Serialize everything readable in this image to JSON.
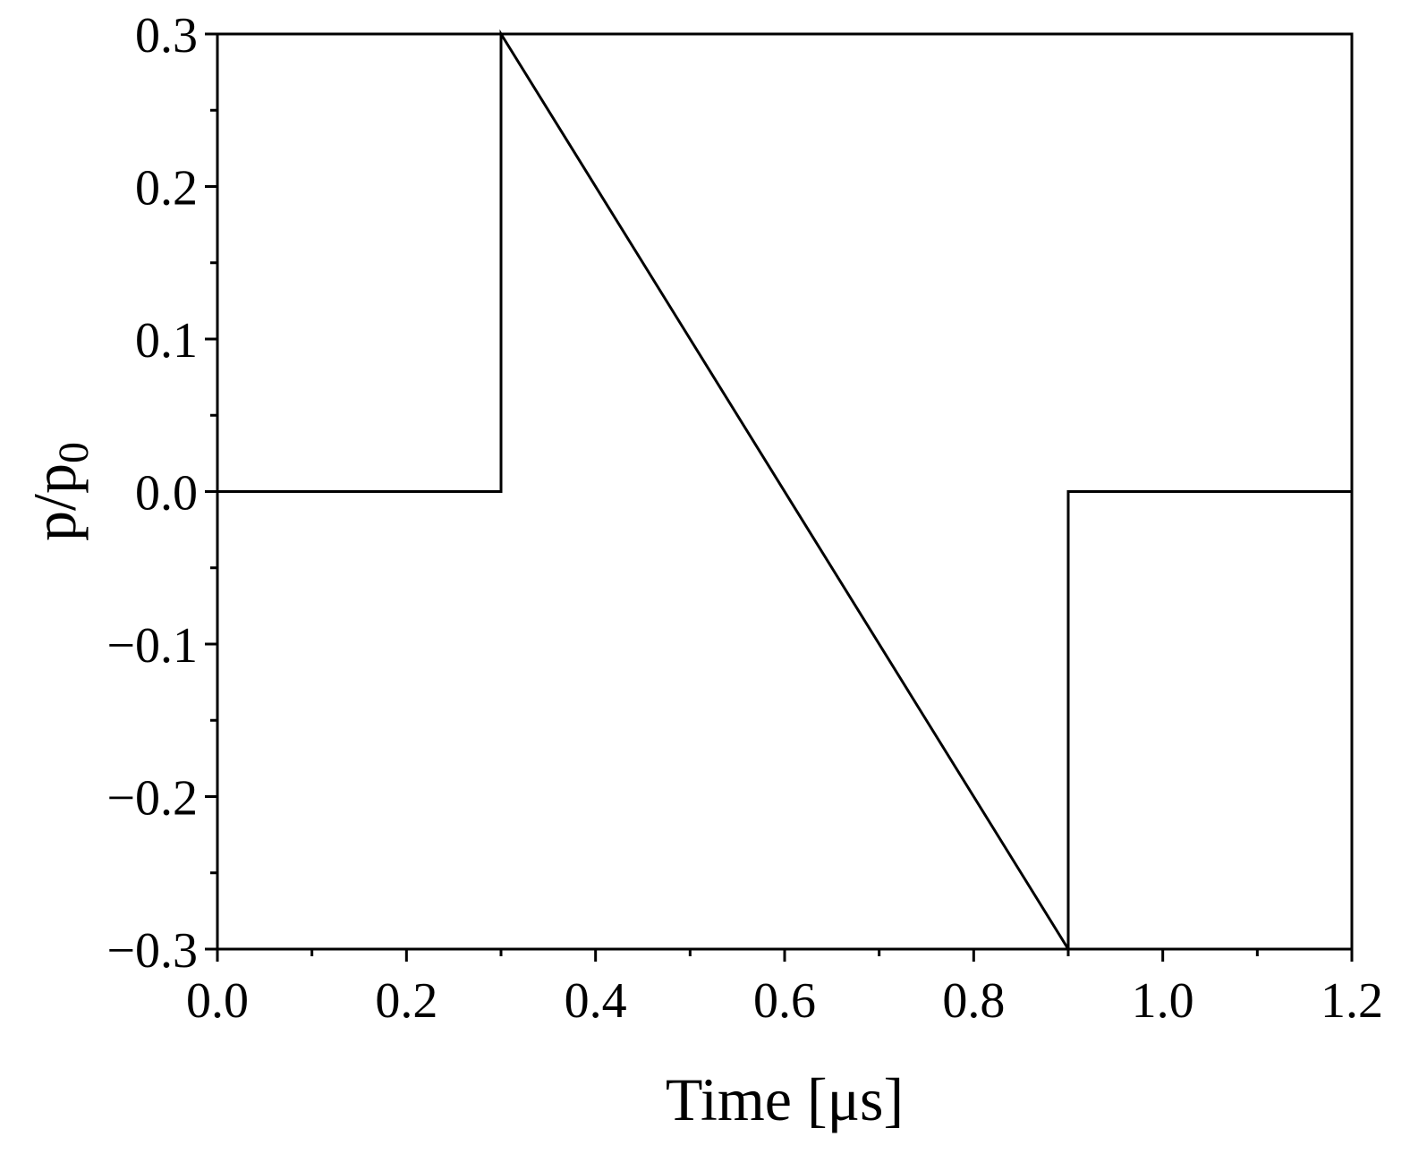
{
  "chart_data": {
    "type": "line",
    "title": "",
    "xlabel": "Time [μs]",
    "ylabel": {
      "base": "p/p",
      "subscript": "0"
    },
    "xlim": [
      0.0,
      1.2
    ],
    "ylim": [
      -0.3,
      0.3
    ],
    "x_ticks": [
      {
        "value": 0.0,
        "label": "0.0"
      },
      {
        "value": 0.2,
        "label": "0.2"
      },
      {
        "value": 0.4,
        "label": "0.4"
      },
      {
        "value": 0.6,
        "label": "0.6"
      },
      {
        "value": 0.8,
        "label": "0.8"
      },
      {
        "value": 1.0,
        "label": "1.0"
      },
      {
        "value": 1.2,
        "label": "1.2"
      }
    ],
    "y_ticks": [
      {
        "value": -0.3,
        "label": "−0.3"
      },
      {
        "value": -0.2,
        "label": "−0.2"
      },
      {
        "value": -0.1,
        "label": "−0.1"
      },
      {
        "value": 0.0,
        "label": "0.0"
      },
      {
        "value": 0.1,
        "label": "0.1"
      },
      {
        "value": 0.2,
        "label": "0.2"
      },
      {
        "value": 0.3,
        "label": "0.3"
      }
    ],
    "x_minor_step": 0.1,
    "y_minor_step": 0.05,
    "grid": false,
    "legend": "none",
    "series": [
      {
        "color": "#000000",
        "points": [
          [
            0.0,
            0.0
          ],
          [
            0.3,
            0.0
          ],
          [
            0.3,
            0.3
          ],
          [
            0.9,
            -0.3
          ],
          [
            0.9,
            0.0
          ],
          [
            1.2,
            0.0
          ]
        ]
      }
    ]
  }
}
